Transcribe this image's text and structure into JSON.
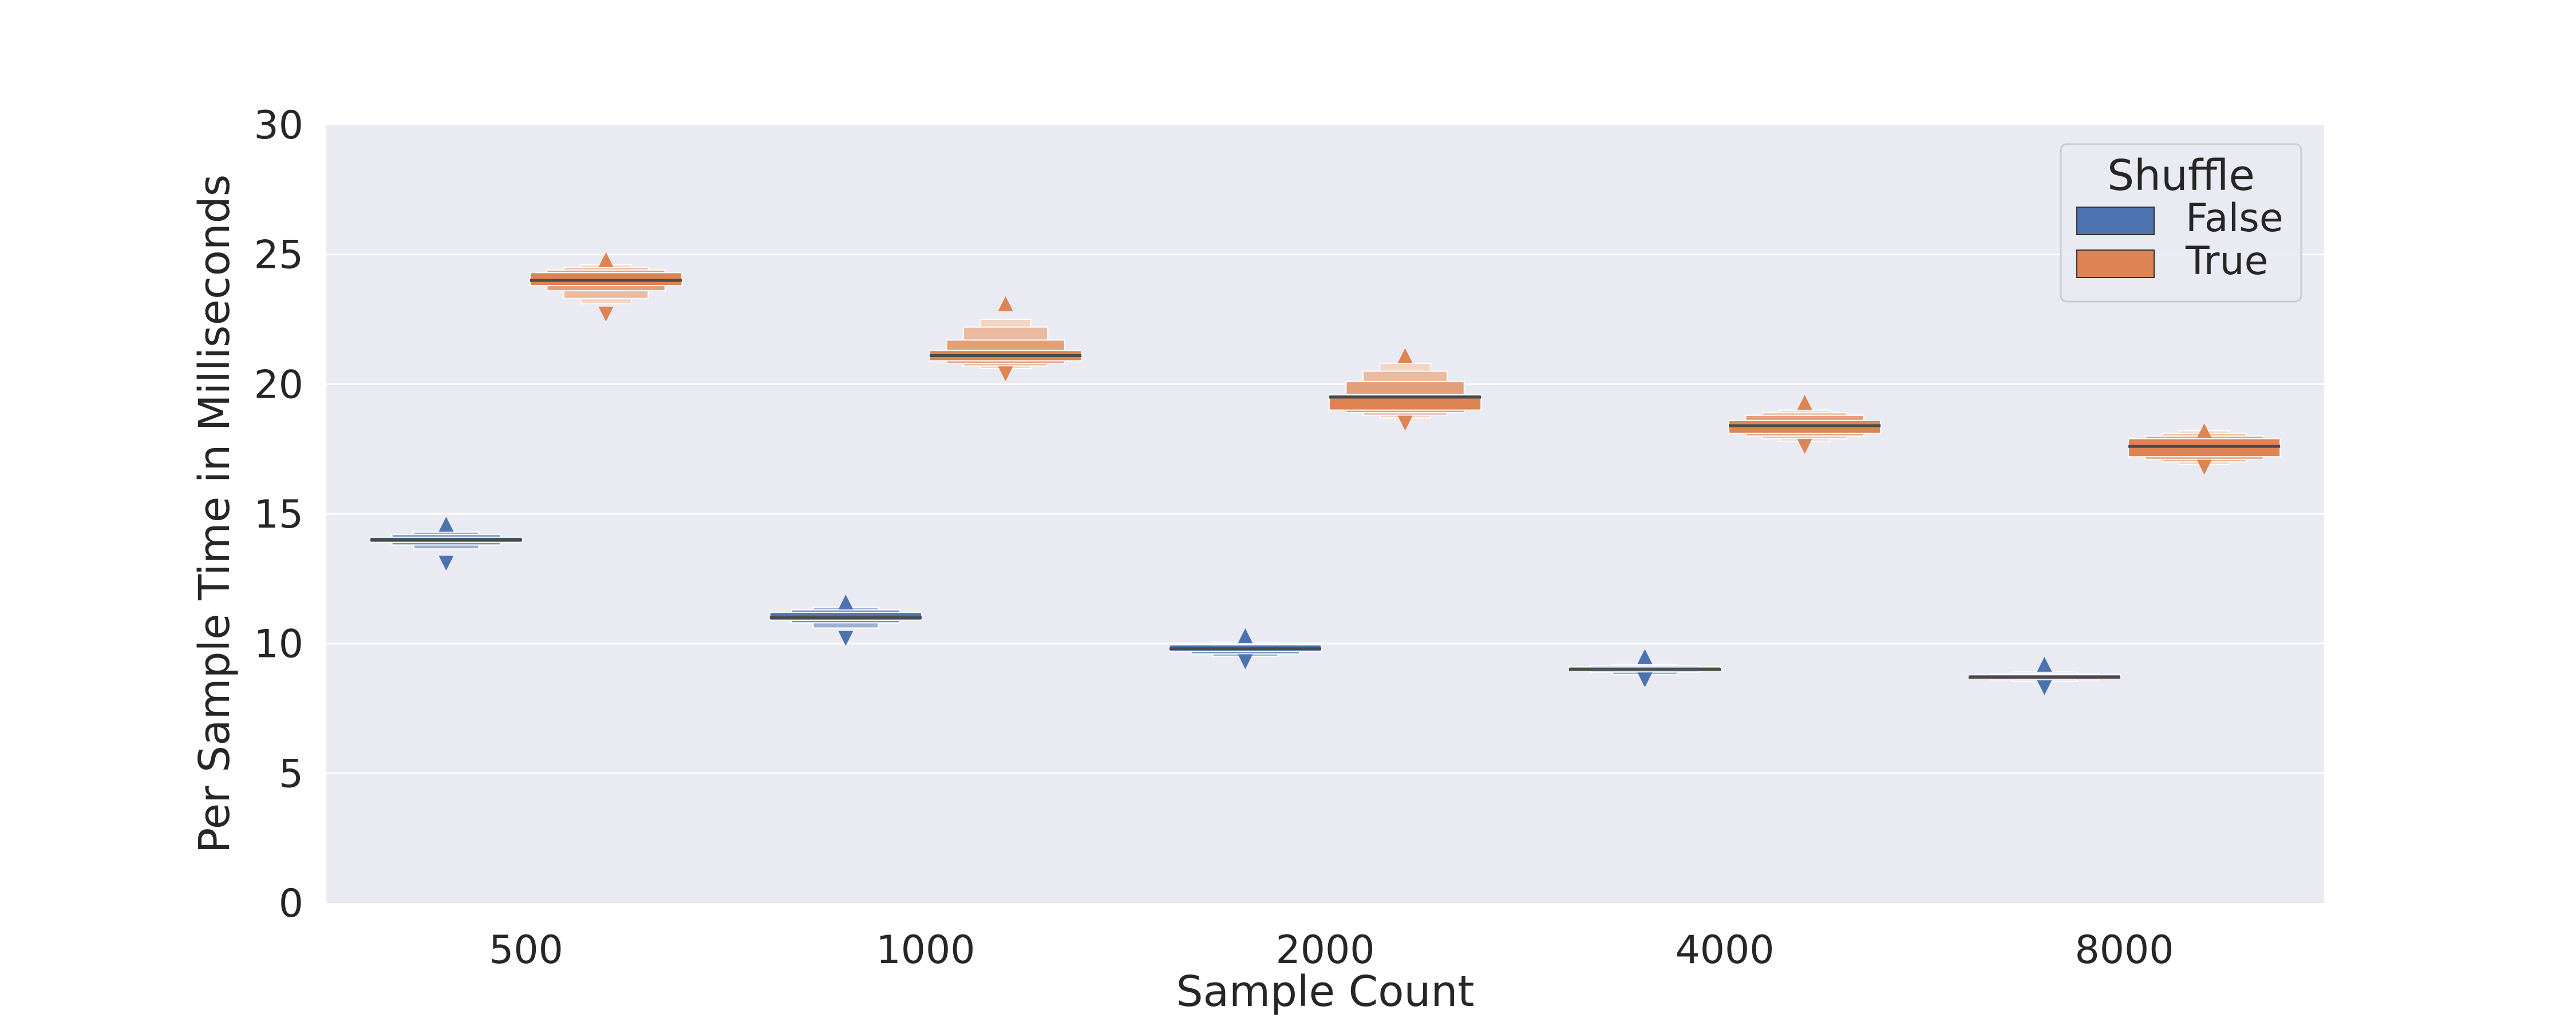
{
  "chart_data": {
    "type": "boxen",
    "title": "",
    "xlabel": "Sample Count",
    "ylabel": "Per Sample Time in Milliseconds",
    "categories": [
      "500",
      "1000",
      "2000",
      "4000",
      "8000"
    ],
    "ylim": [
      0,
      30
    ],
    "yticks": [
      0,
      5,
      10,
      15,
      20,
      25,
      30
    ],
    "grid": true,
    "legend": {
      "title": "Shuffle",
      "placement": "top-right",
      "entries": [
        "False",
        "True"
      ]
    },
    "colors": {
      "background": "#eaeaf2",
      "grid": "#ffffff",
      "False": "#4c72b0",
      "True": "#dd8452",
      "median_line": "#4a4a4a"
    },
    "series": [
      {
        "name": "False",
        "medians": [
          14.0,
          11.0,
          9.8,
          9.0,
          8.7
        ],
        "levels": [
          [
            [
              13.9,
              14.1
            ],
            [
              13.8,
              14.2
            ],
            [
              13.65,
              14.3
            ]
          ],
          [
            [
              10.9,
              11.2
            ],
            [
              10.8,
              11.3
            ],
            [
              10.6,
              11.4
            ]
          ],
          [
            [
              9.7,
              9.95
            ],
            [
              9.6,
              10.0
            ],
            [
              9.5,
              10.05
            ]
          ],
          [
            [
              8.95,
              9.1
            ],
            [
              8.9,
              9.15
            ],
            [
              8.8,
              9.2
            ]
          ],
          [
            [
              8.65,
              8.8
            ],
            [
              8.6,
              8.85
            ],
            [
              8.55,
              8.9
            ]
          ]
        ],
        "outliers": [
          [
            13.1,
            14.6
          ],
          [
            10.2,
            11.6
          ],
          [
            9.3,
            10.3
          ],
          [
            8.6,
            9.5
          ],
          [
            8.3,
            9.2
          ]
        ]
      },
      {
        "name": "True",
        "medians": [
          24.0,
          21.1,
          19.5,
          18.4,
          17.6
        ],
        "levels": [
          [
            [
              23.8,
              24.3
            ],
            [
              23.6,
              24.4
            ],
            [
              23.3,
              24.5
            ],
            [
              23.1,
              24.6
            ]
          ],
          [
            [
              20.9,
              21.3
            ],
            [
              20.8,
              21.7
            ],
            [
              20.7,
              22.2
            ],
            [
              20.6,
              22.5
            ]
          ],
          [
            [
              19.0,
              19.6
            ],
            [
              18.9,
              20.1
            ],
            [
              18.8,
              20.5
            ],
            [
              18.7,
              20.8
            ]
          ],
          [
            [
              18.1,
              18.6
            ],
            [
              18.0,
              18.8
            ],
            [
              17.9,
              18.9
            ],
            [
              17.8,
              19.0
            ]
          ],
          [
            [
              17.2,
              17.9
            ],
            [
              17.1,
              18.0
            ],
            [
              17.0,
              18.1
            ],
            [
              16.9,
              18.2
            ]
          ]
        ],
        "outliers": [
          [
            22.7,
            24.8
          ],
          [
            20.4,
            23.1
          ],
          [
            18.5,
            21.1
          ],
          [
            17.6,
            19.3
          ],
          [
            16.8,
            18.2
          ]
        ]
      }
    ]
  }
}
